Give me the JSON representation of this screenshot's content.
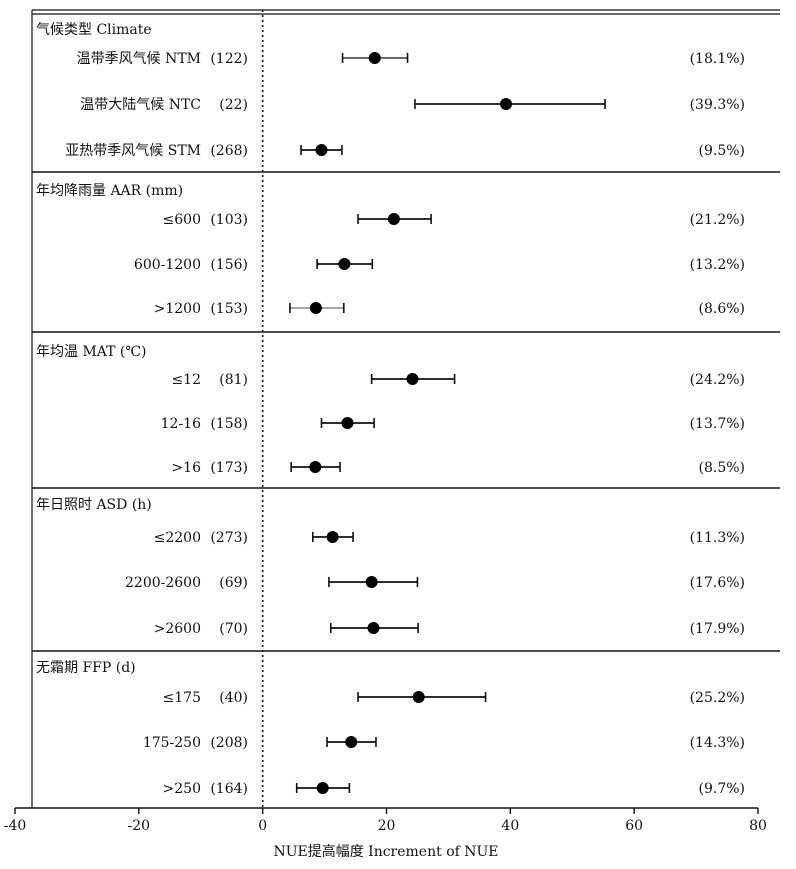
{
  "chart_data": {
    "type": "forest",
    "xlabel": "NUE提高幅度 Increment of NUE",
    "xlim": [
      -40,
      80
    ],
    "xticks": [
      -40,
      -20,
      0,
      20,
      40,
      60,
      80
    ],
    "reference_line": 0,
    "grid": false,
    "groups": [
      {
        "title": "气候类型 Climate",
        "rows": [
          {
            "label": "温带季风气候 NTM",
            "n": "(122)",
            "pct": "(18.1%)",
            "mean": 18.1,
            "low": 12.9,
            "high": 23.4,
            "whisker_color": "#555555"
          },
          {
            "label": "温带大陆气候 NTC",
            "n": "(22)",
            "pct": "(39.3%)",
            "mean": 39.3,
            "low": 24.6,
            "high": 55.3,
            "whisker_color": "#111111"
          },
          {
            "label": "亚热带季风气候 STM",
            "n": "(268)",
            "pct": "(9.5%)",
            "mean": 9.5,
            "low": 6.2,
            "high": 12.8,
            "whisker_color": "#111111"
          }
        ]
      },
      {
        "title": "年均降雨量 AAR (mm)",
        "rows": [
          {
            "label": "≤600",
            "n": "(103)",
            "pct": "(21.2%)",
            "mean": 21.2,
            "low": 15.4,
            "high": 27.2,
            "whisker_color": "#111111"
          },
          {
            "label": "600-1200",
            "n": "(156)",
            "pct": "(13.2%)",
            "mean": 13.2,
            "low": 8.8,
            "high": 17.7,
            "whisker_color": "#111111"
          },
          {
            "label": ">1200",
            "n": "(153)",
            "pct": "(8.6%)",
            "mean": 8.6,
            "low": 4.4,
            "high": 13.1,
            "whisker_color": "#999999"
          }
        ]
      },
      {
        "title": "年均温 MAT (℃)",
        "rows": [
          {
            "label": "≤12",
            "n": "(81)",
            "pct": "(24.2%)",
            "mean": 24.2,
            "low": 17.6,
            "high": 31.0,
            "whisker_color": "#111111"
          },
          {
            "label": "12-16",
            "n": "(158)",
            "pct": "(13.7%)",
            "mean": 13.7,
            "low": 9.5,
            "high": 18.0,
            "whisker_color": "#111111"
          },
          {
            "label": ">16",
            "n": "(173)",
            "pct": "(8.5%)",
            "mean": 8.5,
            "low": 4.6,
            "high": 12.5,
            "whisker_color": "#111111"
          }
        ]
      },
      {
        "title": "年日照时 ASD (h)",
        "rows": [
          {
            "label": "≤2200",
            "n": "(273)",
            "pct": "(11.3%)",
            "mean": 11.3,
            "low": 8.1,
            "high": 14.6,
            "whisker_color": "#111111"
          },
          {
            "label": "2200-2600",
            "n": "(69)",
            "pct": "(17.6%)",
            "mean": 17.6,
            "low": 10.7,
            "high": 25.0,
            "whisker_color": "#111111"
          },
          {
            "label": ">2600",
            "n": "(70)",
            "pct": "(17.9%)",
            "mean": 17.9,
            "low": 11.0,
            "high": 25.1,
            "whisker_color": "#111111"
          }
        ]
      },
      {
        "title": "无霜期 FFP (d)",
        "rows": [
          {
            "label": "≤175",
            "n": "(40)",
            "pct": "(25.2%)",
            "mean": 25.2,
            "low": 15.4,
            "high": 36.0,
            "whisker_color": "#111111"
          },
          {
            "label": "175-250",
            "n": "(208)",
            "pct": "(14.3%)",
            "mean": 14.3,
            "low": 10.4,
            "high": 18.3,
            "whisker_color": "#111111"
          },
          {
            "label": ">250",
            "n": "(164)",
            "pct": "(9.7%)",
            "mean": 9.7,
            "low": 5.5,
            "high": 14.0,
            "whisker_color": "#111111"
          }
        ]
      }
    ]
  }
}
